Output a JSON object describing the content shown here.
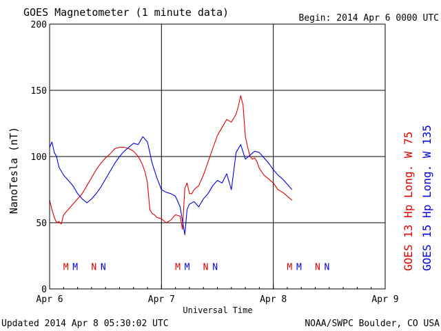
{
  "chart_data": {
    "type": "line",
    "title": "GOES Magnetometer (1 minute data)",
    "begin_label": "Begin:  2014 Apr 6 0000 UTC",
    "xlabel": "Universal Time",
    "ylabel": "NanoTesla (nT)",
    "ylim": [
      0,
      200
    ],
    "yticks": [
      0,
      50,
      100,
      150,
      200
    ],
    "xlim": [
      "2014-04-06T00:00",
      "2014-04-09T00:00"
    ],
    "xticks": [
      "Apr 6",
      "Apr 7",
      "Apr 8",
      "Apr 9"
    ],
    "grid": true,
    "colors": {
      "goes13": "#e00000",
      "goes15": "#0000e0"
    },
    "series": [
      {
        "name": "GOES 13 Hp  Long. W 75",
        "color": "#e00000",
        "x_hours": [
          0,
          0.5,
          1,
          1.5,
          2,
          2.5,
          3,
          4,
          5,
          6,
          7,
          8,
          9,
          10,
          11,
          12,
          13,
          13.5,
          14,
          15,
          16,
          17,
          18,
          19,
          19.5,
          20,
          20.5,
          21,
          21.5,
          22,
          22.5,
          23,
          24,
          25,
          26,
          27,
          28,
          28.5,
          29,
          29.5,
          30,
          30.5,
          31,
          32,
          33,
          34,
          35,
          36,
          37,
          38,
          39,
          40,
          40.5,
          41,
          41.5,
          42,
          42.5,
          43,
          43.5,
          44,
          44.5,
          45,
          46,
          47,
          48,
          49,
          50,
          51,
          52
        ],
        "values": [
          67,
          60,
          54,
          50,
          51,
          49,
          56,
          60,
          64,
          68,
          72,
          78,
          84,
          90,
          95,
          99,
          102,
          104,
          106,
          107,
          107,
          106,
          104,
          100,
          97,
          93,
          88,
          80,
          60,
          57,
          56,
          54,
          53,
          50,
          52,
          56,
          55,
          45,
          76,
          80,
          72,
          72,
          75,
          78,
          86,
          96,
          106,
          116,
          122,
          128,
          126,
          132,
          138,
          146,
          139,
          115,
          107,
          100,
          98,
          99,
          96,
          91,
          86,
          83,
          80,
          75,
          73,
          70,
          67
        ]
      },
      {
        "name": "GOES 15 Hp  Long. W 135",
        "color": "#0000e0",
        "x_hours": [
          0,
          0.5,
          1,
          1.5,
          2,
          3,
          4,
          5,
          6,
          7,
          8,
          9,
          10,
          11,
          12,
          13,
          14,
          15,
          16,
          17,
          18,
          19,
          20,
          21,
          22,
          23,
          24,
          25,
          26,
          27,
          28,
          29,
          29.5,
          30,
          31,
          32,
          33,
          34,
          35,
          36,
          37,
          38,
          39,
          40,
          41,
          42,
          43,
          44,
          45,
          46,
          47,
          48,
          49,
          50,
          51,
          52
        ],
        "values": [
          107,
          111,
          103,
          100,
          92,
          86,
          82,
          78,
          72,
          68,
          65,
          68,
          72,
          77,
          83,
          89,
          95,
          100,
          104,
          107,
          110,
          109,
          115,
          111,
          95,
          84,
          75,
          73,
          72,
          70,
          62,
          41,
          60,
          64,
          66,
          62,
          68,
          72,
          78,
          82,
          80,
          87,
          75,
          103,
          109,
          98,
          101,
          104,
          103,
          99,
          95,
          90,
          86,
          83,
          79,
          75
        ]
      }
    ],
    "markers": {
      "row_value": 17,
      "items": [
        {
          "label": "M",
          "hour": 3.5,
          "series": "GOES 13 Hp  Long. W 75"
        },
        {
          "label": "M",
          "hour": 5.5,
          "series": "GOES 15 Hp  Long. W 135"
        },
        {
          "label": "N",
          "hour": 9.5,
          "series": "GOES 13 Hp  Long. W 75"
        },
        {
          "label": "N",
          "hour": 11.5,
          "series": "GOES 15 Hp  Long. W 135"
        },
        {
          "label": "M",
          "hour": 27.5,
          "series": "GOES 13 Hp  Long. W 75"
        },
        {
          "label": "M",
          "hour": 29.5,
          "series": "GOES 15 Hp  Long. W 135"
        },
        {
          "label": "N",
          "hour": 33.5,
          "series": "GOES 13 Hp  Long. W 75"
        },
        {
          "label": "N",
          "hour": 35.5,
          "series": "GOES 15 Hp  Long. W 135"
        },
        {
          "label": "M",
          "hour": 51.5,
          "series": "GOES 13 Hp  Long. W 75"
        },
        {
          "label": "M",
          "hour": 53.5,
          "series": "GOES 15 Hp  Long. W 135"
        },
        {
          "label": "N",
          "hour": 57.5,
          "series": "GOES 13 Hp  Long. W 75"
        },
        {
          "label": "N",
          "hour": 59.5,
          "series": "GOES 15 Hp  Long. W 135"
        }
      ]
    }
  },
  "footer": {
    "updated": "Updated 2014 Apr  8 05:30:02 UTC",
    "credit": "NOAA/SWPC Boulder, CO USA"
  }
}
